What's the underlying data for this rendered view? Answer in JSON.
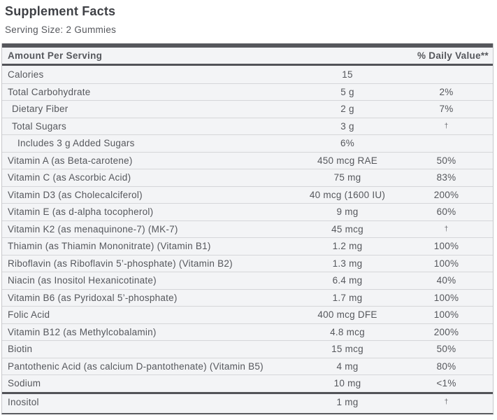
{
  "label": {
    "title": "Supplement Facts",
    "serving_size": "Serving Size: 2 Gummies"
  },
  "table": {
    "header": {
      "amount_column": "Amount Per Serving",
      "daily_value_column": "% Daily Value**"
    },
    "rows": [
      {
        "name": "Calories",
        "amount": "15",
        "dv": "",
        "indent": 0
      },
      {
        "name": "Total Carbohydrate",
        "amount": "5 g",
        "dv": "2%",
        "indent": 0
      },
      {
        "name": "Dietary Fiber",
        "amount": "2 g",
        "dv": "7%",
        "indent": 1
      },
      {
        "name": "Total Sugars",
        "amount": "3 g",
        "dv": "†",
        "indent": 1
      },
      {
        "name": "Includes 3 g Added Sugars",
        "amount": "6%",
        "dv": "",
        "indent": 2
      },
      {
        "name": "Vitamin A (as Beta-carotene)",
        "amount": "450 mcg RAE",
        "dv": "50%",
        "indent": 0
      },
      {
        "name": "Vitamin C (as Ascorbic Acid)",
        "amount": "75 mg",
        "dv": "83%",
        "indent": 0
      },
      {
        "name": "Vitamin D3 (as Cholecalciferol)",
        "amount": "40 mcg (1600 IU)",
        "dv": "200%",
        "indent": 0
      },
      {
        "name": "Vitamin E (as d-alpha tocopherol)",
        "amount": "9 mg",
        "dv": "60%",
        "indent": 0
      },
      {
        "name": "Vitamin K2 (as menaquinone-7) (MK-7)",
        "amount": "45 mcg",
        "dv": "†",
        "indent": 0
      },
      {
        "name": "Thiamin (as Thiamin Mononitrate) (Vitamin B1)",
        "amount": "1.2 mg",
        "dv": "100%",
        "indent": 0
      },
      {
        "name": "Riboflavin (as Riboflavin 5’-phosphate) (Vitamin B2)",
        "amount": "1.3 mg",
        "dv": "100%",
        "indent": 0
      },
      {
        "name": "Niacin (as Inositol Hexanicotinate)",
        "amount": "6.4 mg",
        "dv": "40%",
        "indent": 0
      },
      {
        "name": "Vitamin B6 (as Pyridoxal 5’-phosphate)",
        "amount": "1.7 mg",
        "dv": "100%",
        "indent": 0
      },
      {
        "name": "Folic Acid",
        "amount": "400 mcg DFE",
        "dv": "100%",
        "indent": 0
      },
      {
        "name": "Vitamin B12 (as Methylcobalamin)",
        "amount": "4.8 mcg",
        "dv": "200%",
        "indent": 0
      },
      {
        "name": "Biotin",
        "amount": "15 mcg",
        "dv": "50%",
        "indent": 0
      },
      {
        "name": "Pantothenic Acid (as calcium D-pantothenate) (Vitamin B5)",
        "amount": "4 mg",
        "dv": "80%",
        "indent": 0
      },
      {
        "name": "Sodium",
        "amount": "10 mg",
        "dv": "<1%",
        "indent": 0
      },
      {
        "name": "Inositol",
        "amount": "1 mg",
        "dv": "†",
        "indent": 0,
        "last": true
      }
    ]
  },
  "colors": {
    "bar": "#56575c",
    "row_background": "#f3f4f6",
    "divider": "#d5d6d9",
    "text": "#55575c",
    "title": "#3f4146",
    "side_border": "#c6c7ca"
  }
}
